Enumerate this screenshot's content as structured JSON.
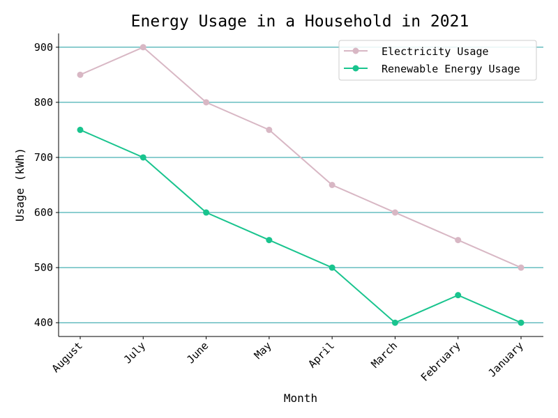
{
  "chart_data": {
    "type": "line",
    "title": "Energy Usage in a Household in 2021",
    "xlabel": "Month",
    "ylabel": "Usage (kWh)",
    "categories": [
      "August",
      "July",
      "June",
      "May",
      "April",
      "March",
      "February",
      "January"
    ],
    "yticks": [
      "400",
      "500",
      "600",
      "700",
      "800",
      "900"
    ],
    "ylim": [
      375,
      925
    ],
    "grid": "horizontal",
    "legend_position": "top-right",
    "series": [
      {
        "name": "Electricity Usage",
        "color": "#d8b7c4",
        "values": [
          850,
          900,
          800,
          750,
          650,
          600,
          550,
          500
        ]
      },
      {
        "name": "Renewable Energy Usage",
        "color": "#19c48e",
        "values": [
          750,
          700,
          600,
          550,
          500,
          400,
          450,
          400
        ]
      }
    ],
    "grid_color": "#1a9ca0"
  }
}
